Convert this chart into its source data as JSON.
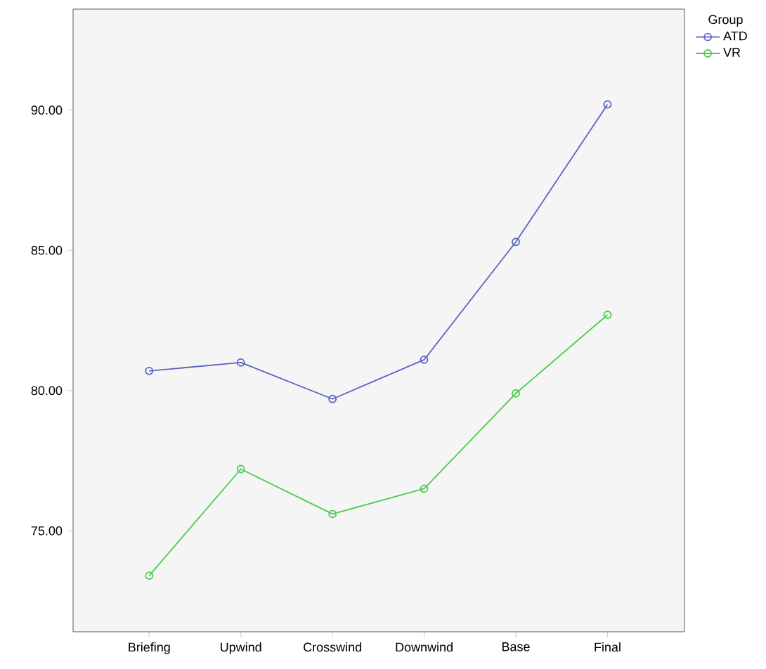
{
  "chart_data": {
    "type": "line",
    "categories": [
      "Briefing",
      "Upwind",
      "Crosswind",
      "Downwind",
      "Base",
      "Final"
    ],
    "series": [
      {
        "name": "ATD",
        "color": "#5a64c0",
        "values": [
          80.7,
          81.0,
          79.7,
          81.1,
          85.3,
          90.2
        ]
      },
      {
        "name": "VR",
        "color": "#4ccc4c",
        "values": [
          73.4,
          77.2,
          75.6,
          76.5,
          79.9,
          82.7
        ]
      }
    ],
    "legend_title": "Group",
    "ylim": [
      71.4,
      93.6
    ],
    "yticks": [
      {
        "value": 75,
        "label": "75.00"
      },
      {
        "value": 80,
        "label": "80.00"
      },
      {
        "value": 85,
        "label": "85.00"
      },
      {
        "value": 90,
        "label": "90.00"
      }
    ],
    "legend": "right",
    "marker": "circle",
    "grid": false
  }
}
